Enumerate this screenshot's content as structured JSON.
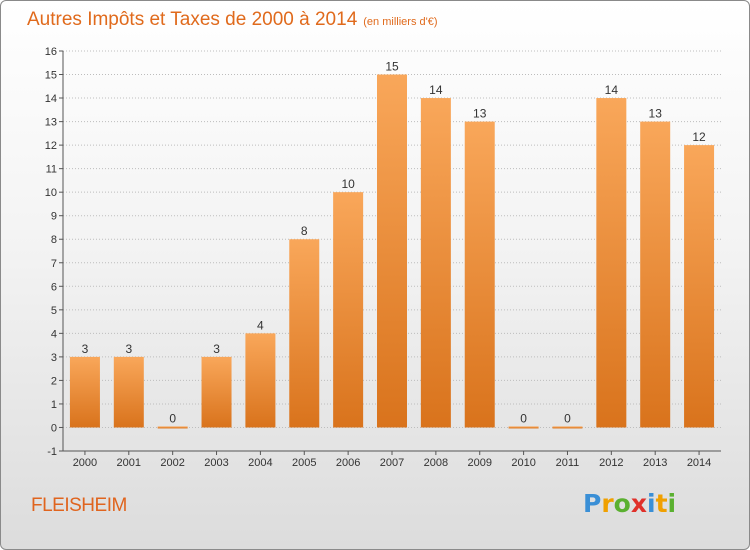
{
  "header": {
    "title": "Autres Impôts et Taxes de 2000 à 2014",
    "subtitle": "(en milliers d'€)"
  },
  "footer": {
    "commune": "FLEISHEIM",
    "logo_letters": [
      "P",
      "r",
      "o",
      "x",
      "i",
      "t",
      "i"
    ],
    "logo_colors": [
      "#3a8fd6",
      "#f0a000",
      "#5ab030",
      "#e0302a",
      "#3a8fd6",
      "#f0a000",
      "#5ab030"
    ]
  },
  "colors": {
    "title": "#e06a1c",
    "bar_light": "#f9a75a",
    "bar_dark": "#d9731c",
    "grid": "#bdbdbd"
  },
  "chart_data": {
    "type": "bar",
    "categories": [
      "2000",
      "2001",
      "2002",
      "2003",
      "2004",
      "2005",
      "2006",
      "2007",
      "2008",
      "2009",
      "2010",
      "2011",
      "2012",
      "2013",
      "2014"
    ],
    "values": [
      3,
      3,
      0,
      3,
      4,
      8,
      10,
      15,
      14,
      13,
      0,
      0,
      14,
      13,
      12
    ],
    "title": "Autres Impôts et Taxes de 2000 à 2014",
    "xlabel": "",
    "ylabel": "",
    "ylim": [
      -1,
      16
    ],
    "yticks": [
      -1,
      0,
      1,
      2,
      3,
      4,
      5,
      6,
      7,
      8,
      9,
      10,
      11,
      12,
      13,
      14,
      15,
      16
    ],
    "grid": true,
    "legend": "none"
  }
}
